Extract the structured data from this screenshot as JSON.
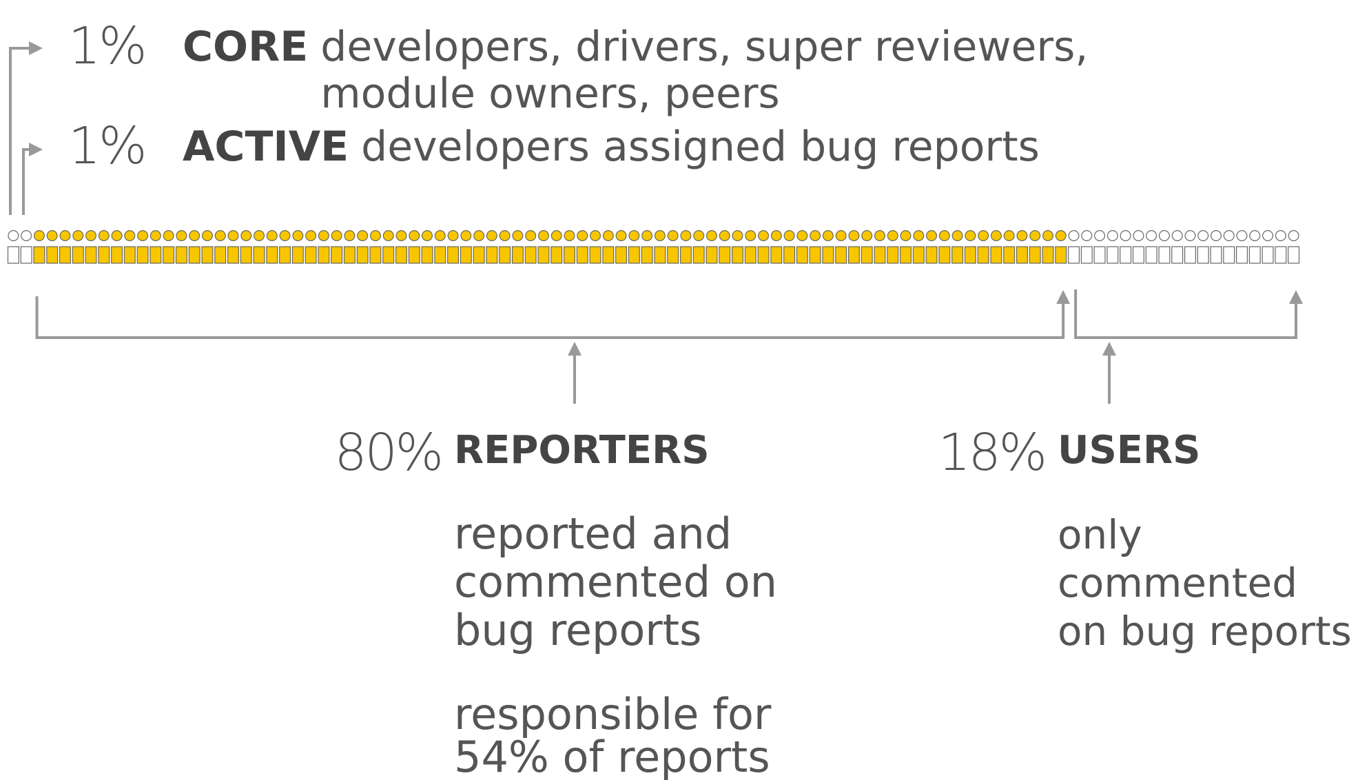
{
  "groups": [
    {
      "value": 1,
      "value_label": "1%",
      "name": "CORE",
      "color": "#ffffff",
      "description": [
        "developers, drivers, super reviewers,",
        "module owners, peers"
      ]
    },
    {
      "value": 1,
      "value_label": "1%",
      "name": "ACTIVE",
      "color": "#ffffff",
      "description": [
        "developers assigned bug reports"
      ]
    },
    {
      "value": 80,
      "value_label": "80%",
      "name": "REPORTERS",
      "color": "#f7c600",
      "description": [
        "reported and",
        "commented on",
        "bug reports"
      ],
      "note": [
        "responsible for",
        "54% of reports"
      ]
    },
    {
      "value": 18,
      "value_label": "18%",
      "name": "USERS",
      "color": "#ffffff",
      "description": [
        "only",
        "commented",
        "on bug reports"
      ]
    }
  ]
}
